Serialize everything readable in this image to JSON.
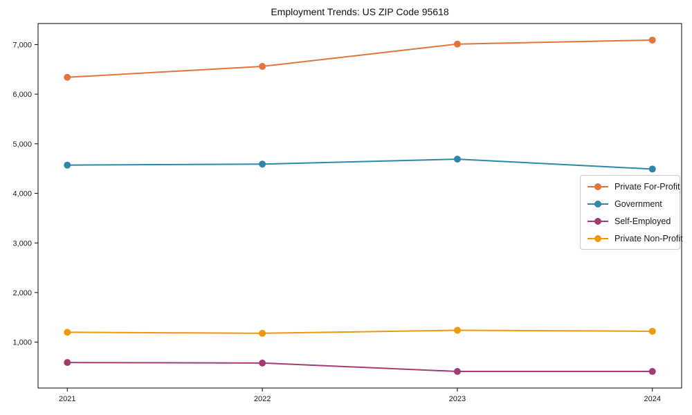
{
  "chart_data": {
    "type": "line",
    "title": "Employment Trends: US ZIP Code 95618",
    "categories": [
      2021,
      2022,
      2023,
      2024
    ],
    "x_tick_labels": [
      "2021",
      "2022",
      "2023",
      "2024"
    ],
    "y_ticks": [
      1000,
      2000,
      3000,
      4000,
      5000,
      6000,
      7000
    ],
    "y_tick_labels": [
      "1,000",
      "2,000",
      "3,000",
      "4,000",
      "5,000",
      "6,000",
      "7,000"
    ],
    "series": [
      {
        "name": "Private For-Profit",
        "color": "#E3743C",
        "values": [
          6340,
          6560,
          7010,
          7090
        ]
      },
      {
        "name": "Government",
        "color": "#2E86AB",
        "values": [
          4570,
          4590,
          4690,
          4490
        ]
      },
      {
        "name": "Self-Employed",
        "color": "#A23B72",
        "values": [
          590,
          580,
          410,
          410
        ]
      },
      {
        "name": "Private Non-Profit",
        "color": "#F0980B",
        "values": [
          1200,
          1180,
          1240,
          1220
        ]
      }
    ],
    "xlabel": "",
    "ylabel": "",
    "xlim": [
      2020.85,
      2024.15
    ],
    "ylim": [
      76,
      7424
    ],
    "grid": false,
    "legend_position": "center right",
    "marker": "circle",
    "axis_color": "#000000",
    "tick_label_color": "#1a1a1a"
  }
}
